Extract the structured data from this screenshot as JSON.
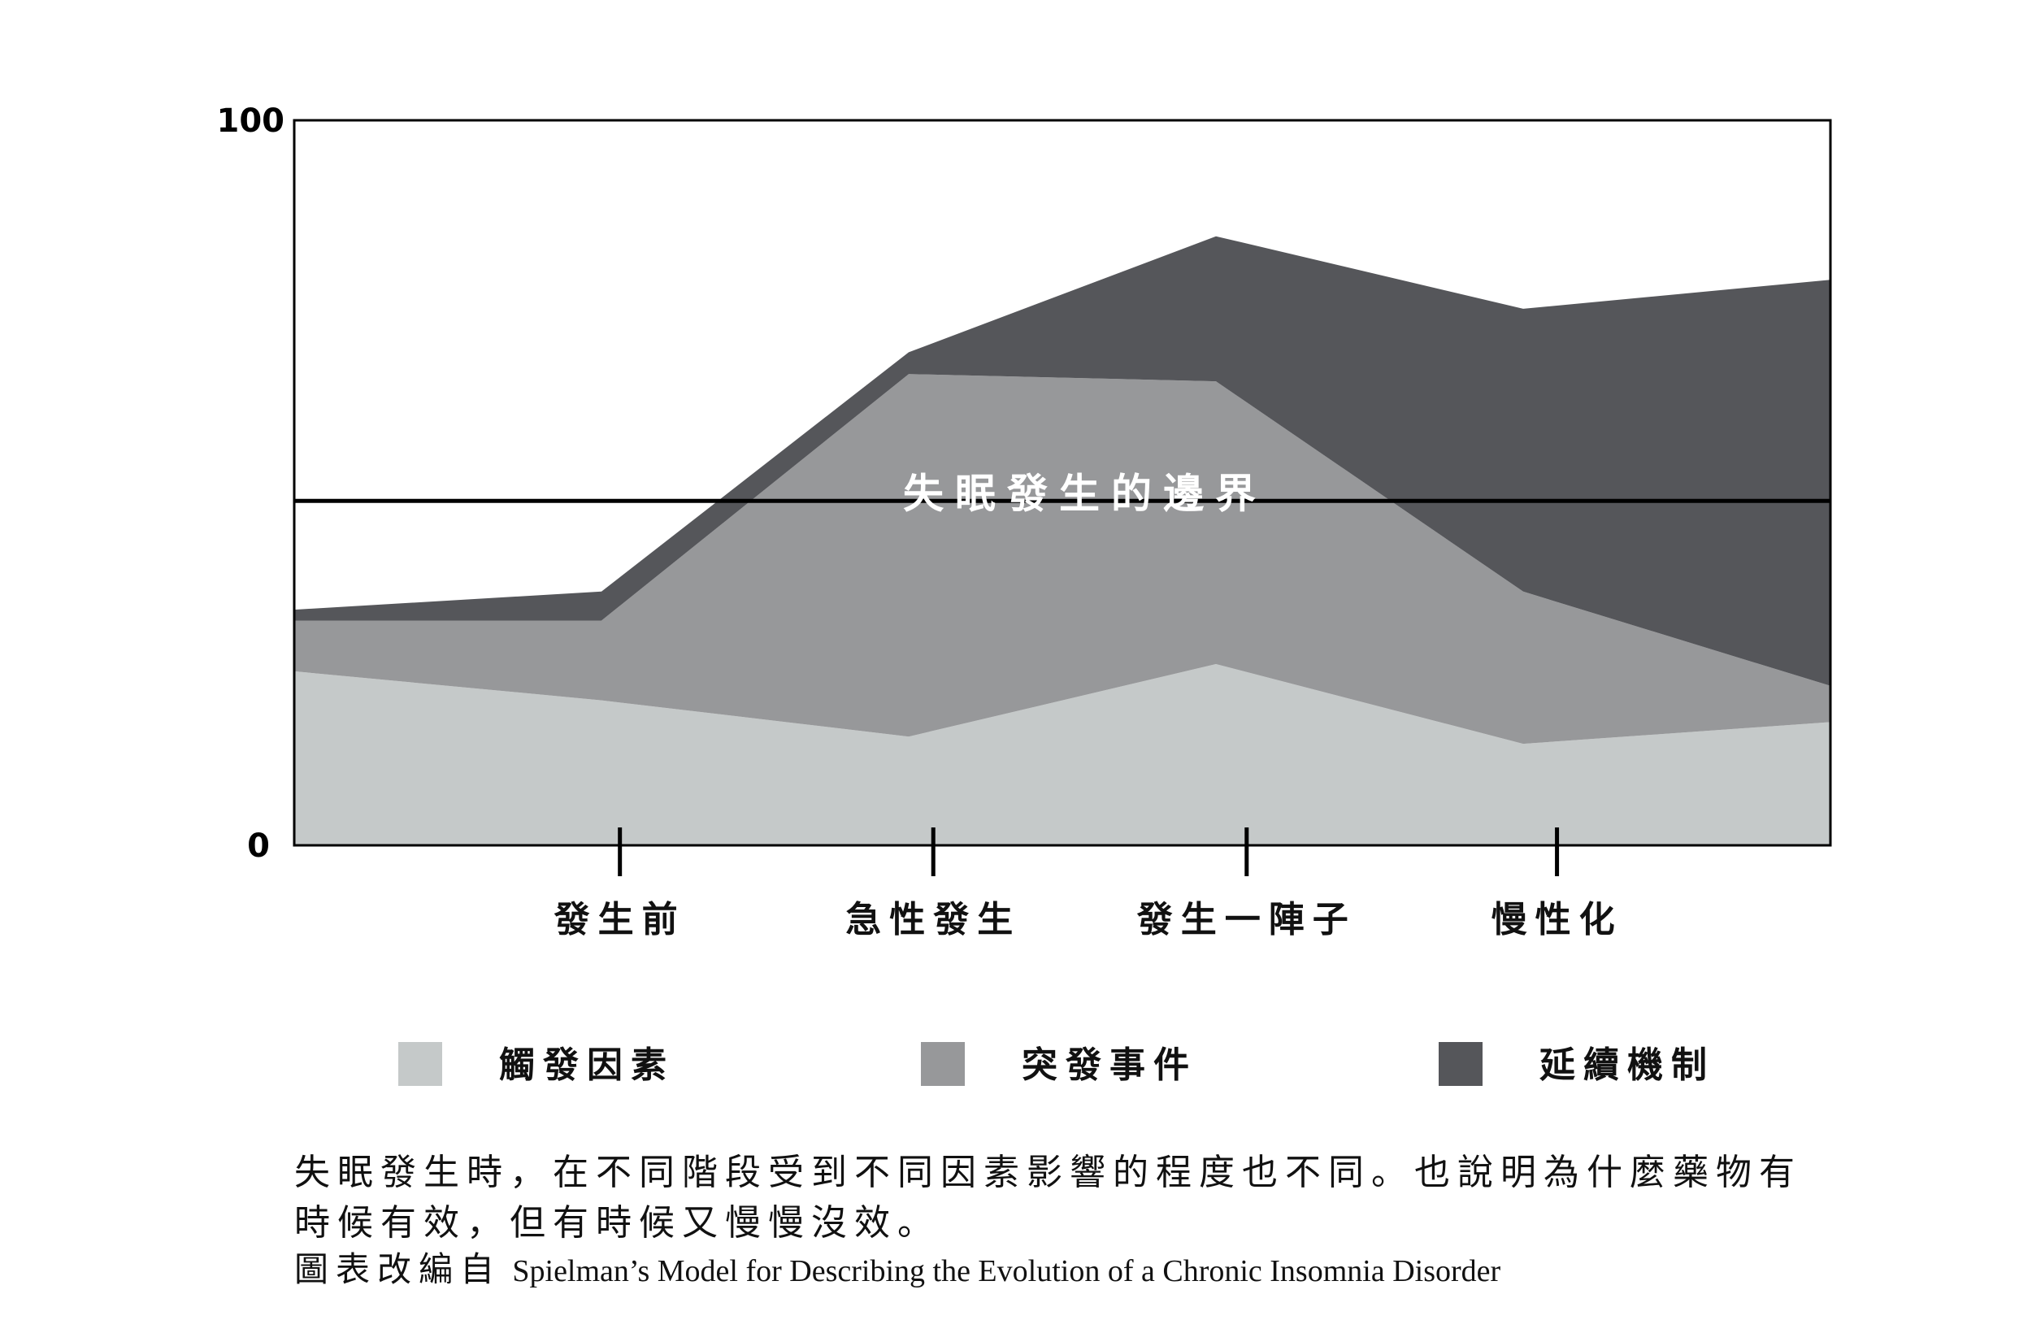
{
  "chart_data": {
    "type": "area",
    "stacked": true,
    "x": [
      0,
      1,
      2,
      3,
      4,
      5
    ],
    "categories": [
      "發生前",
      "急性發生",
      "發生一陣子",
      "慢性化"
    ],
    "category_positions": [
      1.06,
      2.08,
      3.1,
      4.11
    ],
    "ylim": [
      0,
      100
    ],
    "xlim": [
      0,
      5
    ],
    "y_ticks": [
      "0",
      "100"
    ],
    "series": [
      {
        "name": "觸發因素",
        "color": "#c5c9c9",
        "values": [
          24,
          20,
          15,
          25,
          14,
          17
        ]
      },
      {
        "name": "突發事件",
        "color": "#97989a",
        "values": [
          7,
          11,
          50,
          39,
          21,
          5
        ]
      },
      {
        "name": "延續機制",
        "color": "#55565a",
        "values": [
          1.5,
          4,
          3,
          20,
          39,
          56
        ]
      }
    ],
    "threshold": {
      "value": 47.5,
      "label": "失眠發生的邊界"
    },
    "grid": false,
    "legend_position": "bottom"
  },
  "caption": {
    "main": "失眠發生時，在不同階段受到不同因素影響的程度也不同。也說明為什麼藥物有時候有效，但有時候又慢慢沒效。",
    "source_zh": "圖表改編自",
    "source_en": "Spielman’s Model for Describing the Evolution of a Chronic Insomnia Disorder"
  }
}
